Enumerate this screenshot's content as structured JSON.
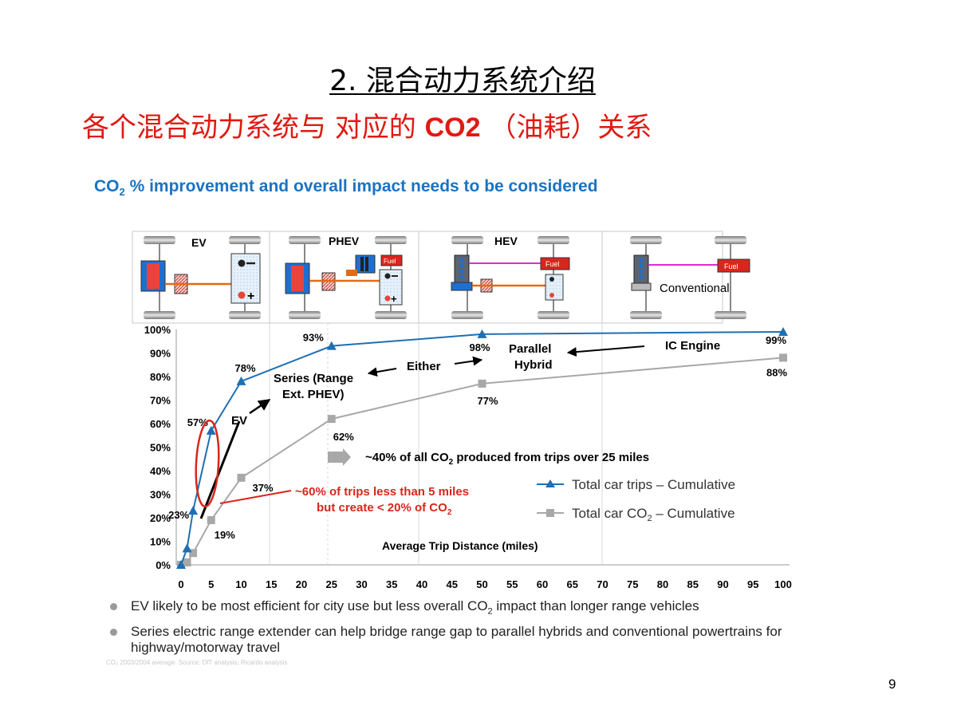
{
  "slide": {
    "title": "2. 混合动力系统介绍",
    "subtitle": "各个混合动力系统与 对应的",
    "subtitle_co2": "CO2",
    "subtitle_rest": "（油耗）关系",
    "chart_heading_prefix": "CO",
    "chart_heading_sub": "2",
    "chart_heading_rest": " % improvement and overall impact needs to be considered",
    "bullets": [
      {
        "before": "EV likely to be most efficient for city use but less overall CO",
        "sub": "2",
        "after": " impact than longer range vehicles"
      },
      {
        "before": "Series electric range extender can help bridge range gap to parallel hybrids and conventional powertrains for highway/motorway travel",
        "sub": "",
        "after": ""
      }
    ],
    "footnote": "CO₂ 2003/2004 average. Source: DfT analysis; Ricardo analysis",
    "page_number": "9",
    "accent_colors": {
      "title_red": "#e01a12",
      "heading_blue": "#1a73c2"
    }
  },
  "vehicles": {
    "ev": "EV",
    "phev": "PHEV",
    "hev": "HEV",
    "conventional": "Conventional",
    "fuel": "Fuel"
  },
  "annotations": {
    "series_range_1": "Series (Range",
    "series_range_2": "Ext. PHEV)",
    "either": "Either",
    "parallel_1": "Parallel",
    "parallel_2": "Hybrid",
    "ic_engine": "IC Engine",
    "ev": "EV",
    "forty_pct_before": "~40% of all CO",
    "forty_pct_sub": "2",
    "forty_pct_after": " produced from trips over 25 miles",
    "sixty_pct_1": "~60% of trips less than 5 miles",
    "sixty_pct_2_before": "but create < 20% of CO",
    "sixty_pct_2_sub": "2"
  },
  "chart_data": {
    "type": "line",
    "xlabel": "Average Trip Distance (miles)",
    "xlim": [
      0,
      100
    ],
    "ylim": [
      0,
      100
    ],
    "xticks": [
      0,
      5,
      10,
      15,
      20,
      25,
      30,
      35,
      40,
      45,
      50,
      55,
      60,
      65,
      70,
      75,
      80,
      85,
      90,
      95,
      100
    ],
    "yticks": [
      "0%",
      "10%",
      "20%",
      "30%",
      "40%",
      "50%",
      "60%",
      "70%",
      "80%",
      "90%",
      "100%"
    ],
    "grid": true,
    "legend_placement": "right-middle",
    "series": [
      {
        "name": "Total car trips – Cumulative",
        "color": "#1f6fb2",
        "marker": "triangle",
        "x": [
          0,
          1,
          2,
          5,
          10,
          25,
          50,
          100
        ],
        "y": [
          0,
          7,
          23,
          57,
          78,
          93,
          98,
          99
        ],
        "labels": [
          null,
          null,
          "23%",
          "57%",
          "78%",
          "93%",
          "98%",
          "99%"
        ]
      },
      {
        "name": "Total car CO2 – Cumulative",
        "legend_before": "Total car CO",
        "legend_sub": "2",
        "legend_after": " – Cumulative",
        "color": "#a8a8a8",
        "marker": "square",
        "x": [
          0,
          1,
          2,
          5,
          10,
          25,
          50,
          100
        ],
        "y": [
          0,
          1,
          5,
          19,
          37,
          62,
          77,
          88
        ],
        "labels": [
          null,
          null,
          null,
          "19%",
          "37%",
          "62%",
          "77%",
          "88%"
        ]
      }
    ]
  }
}
